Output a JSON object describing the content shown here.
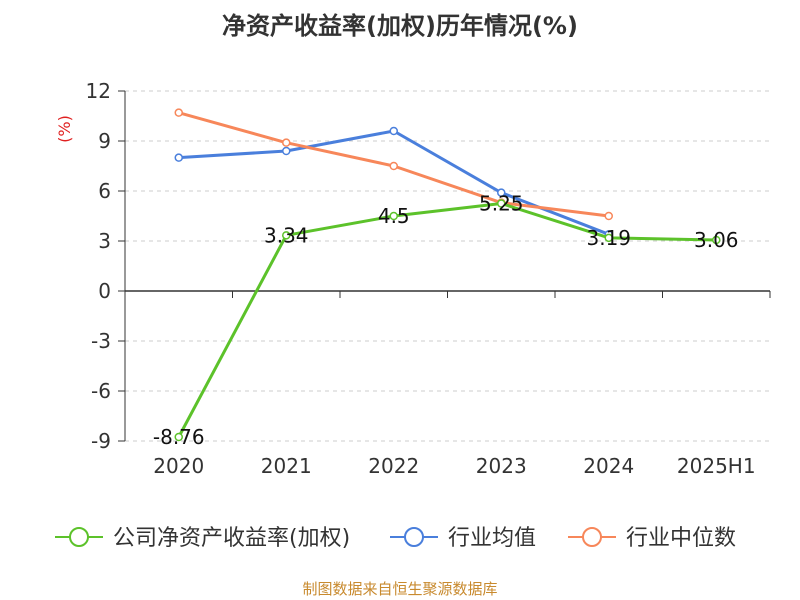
{
  "title": "净资产收益率(加权)历年情况(%)",
  "source": "制图数据来自恒生聚源数据库",
  "chart_data": {
    "type": "line",
    "title": "净资产收益率(加权)历年情况(%)",
    "ylabel": "(%)",
    "xlabel": "",
    "categories": [
      "2020",
      "2021",
      "2022",
      "2023",
      "2024",
      "2025H1"
    ],
    "ylim": [
      -9,
      12
    ],
    "yticks": [
      -9,
      -6,
      -3,
      0,
      3,
      6,
      9,
      12
    ],
    "grid": "horizontal-dashed",
    "legend_position": "bottom",
    "series": [
      {
        "name": "公司净资产收益率(加权)",
        "color": "#5cc22a",
        "values": [
          -8.76,
          3.34,
          4.5,
          5.25,
          3.19,
          3.06
        ],
        "labels": [
          "-8.76",
          "3.34",
          "4.5",
          "5.25",
          "3.19",
          "3.06"
        ]
      },
      {
        "name": "行业均值",
        "color": "#4a7fdc",
        "values": [
          8.0,
          8.4,
          9.6,
          5.9,
          3.4,
          null
        ]
      },
      {
        "name": "行业中位数",
        "color": "#f7875a",
        "values": [
          10.7,
          8.9,
          7.5,
          5.3,
          4.5,
          null
        ]
      }
    ]
  }
}
